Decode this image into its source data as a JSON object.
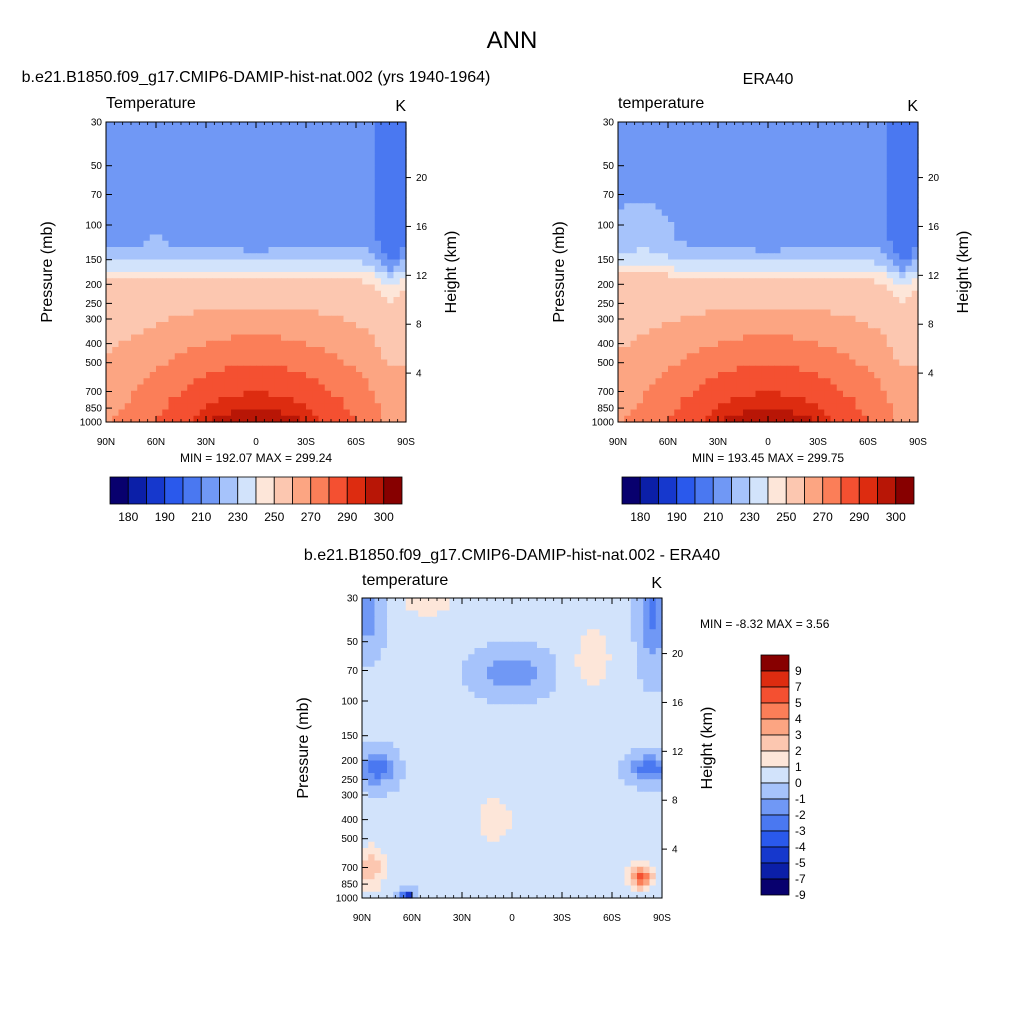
{
  "main_title": "ANN",
  "panels": [
    {
      "title": "b.e21.B1850.f09_g17.CMIP6-DAMIP-hist-nat.002 (yrs 1940-1964)",
      "var_label": "Temperature",
      "units": "K",
      "ylabel_left": "Pressure (mb)",
      "ylabel_right": "Height (km)",
      "stats": "MIN = 192.07  MAX = 299.24"
    },
    {
      "title": "ERA40",
      "var_label": "temperature",
      "units": "K",
      "ylabel_left": "Pressure (mb)",
      "ylabel_right": "Height (km)",
      "stats": "MIN = 193.45  MAX = 299.75"
    },
    {
      "title": "b.e21.B1850.f09_g17.CMIP6-DAMIP-hist-nat.002 - ERA40",
      "var_label": "temperature",
      "units": "K",
      "ylabel_left": "Pressure (mb)",
      "ylabel_right": "Height (km)",
      "stats": "MIN =  -8.32  MAX =   3.56"
    }
  ],
  "colorbar_abs": {
    "colors": [
      "#08006e",
      "#0b1fa8",
      "#1638cd",
      "#2a59ec",
      "#4a78f1",
      "#7098f5",
      "#a6c3fb",
      "#d2e3fb",
      "#fde6d9",
      "#fcc7b0",
      "#fca582",
      "#fb7e58",
      "#f45031",
      "#dd2c10",
      "#b81606",
      "#870000"
    ],
    "labels": [
      "180",
      "190",
      "210",
      "230",
      "250",
      "270",
      "290",
      "300"
    ]
  },
  "colorbar_diff": {
    "colors": [
      "#08006e",
      "#0b1fa8",
      "#1638cd",
      "#2a59ec",
      "#4a78f1",
      "#7098f5",
      "#a6c3fb",
      "#d2e3fb",
      "#fde6d9",
      "#fcc7b0",
      "#fca582",
      "#fb7e58",
      "#f45031",
      "#dd2c10",
      "#870000"
    ],
    "labels": [
      "-9",
      "-7",
      "-5",
      "-4",
      "-3",
      "-2",
      "-1",
      "0",
      "1",
      "2",
      "3",
      "4",
      "5",
      "7",
      "9"
    ]
  },
  "chart_data": [
    {
      "type": "heatmap",
      "title": "b.e21.B1850.f09_g17.CMIP6-DAMIP-hist-nat.002 (yrs 1940-1964)",
      "variable": "Temperature",
      "units": "K",
      "xlabel": "",
      "ylabel": "Pressure (mb)",
      "ylabel_right": "Height (km)",
      "x_ticks": [
        "90N",
        "60N",
        "30N",
        "0",
        "30S",
        "60S",
        "90S"
      ],
      "y_ticks": [
        30,
        50,
        70,
        100,
        150,
        200,
        250,
        300,
        400,
        500,
        700,
        850,
        1000
      ],
      "y_scale": "log",
      "ylim": [
        1000,
        30
      ],
      "right_ticks_km": [
        4,
        8,
        12,
        16,
        20
      ],
      "min": 192.07,
      "max": 299.24,
      "contour_levels": [
        180,
        185,
        190,
        200,
        210,
        220,
        230,
        240,
        250,
        260,
        270,
        280,
        290,
        295,
        300
      ]
    },
    {
      "type": "heatmap",
      "title": "ERA40",
      "variable": "temperature",
      "units": "K",
      "ylabel": "Pressure (mb)",
      "ylabel_right": "Height (km)",
      "x_ticks": [
        "90N",
        "60N",
        "30N",
        "0",
        "30S",
        "60S",
        "90S"
      ],
      "y_ticks": [
        30,
        50,
        70,
        100,
        150,
        200,
        250,
        300,
        400,
        500,
        700,
        850,
        1000
      ],
      "y_scale": "log",
      "ylim": [
        1000,
        30
      ],
      "right_ticks_km": [
        4,
        8,
        12,
        16,
        20
      ],
      "min": 193.45,
      "max": 299.75,
      "contour_levels": [
        180,
        185,
        190,
        200,
        210,
        220,
        230,
        240,
        250,
        260,
        270,
        280,
        290,
        295,
        300
      ]
    },
    {
      "type": "heatmap",
      "title": "b.e21.B1850.f09_g17.CMIP6-DAMIP-hist-nat.002 - ERA40",
      "variable": "temperature",
      "units": "K",
      "ylabel": "Pressure (mb)",
      "ylabel_right": "Height (km)",
      "x_ticks": [
        "90N",
        "60N",
        "30N",
        "0",
        "30S",
        "60S",
        "90S"
      ],
      "y_ticks": [
        30,
        50,
        70,
        100,
        150,
        200,
        250,
        300,
        400,
        500,
        700,
        850,
        1000
      ],
      "y_scale": "log",
      "ylim": [
        1000,
        30
      ],
      "right_ticks_km": [
        4,
        8,
        12,
        16,
        20
      ],
      "min": -8.32,
      "max": 3.56,
      "contour_levels": [
        -9,
        -7,
        -5,
        -4,
        -3,
        -2,
        -1,
        0,
        1,
        2,
        3,
        4,
        5,
        7,
        9
      ]
    }
  ]
}
